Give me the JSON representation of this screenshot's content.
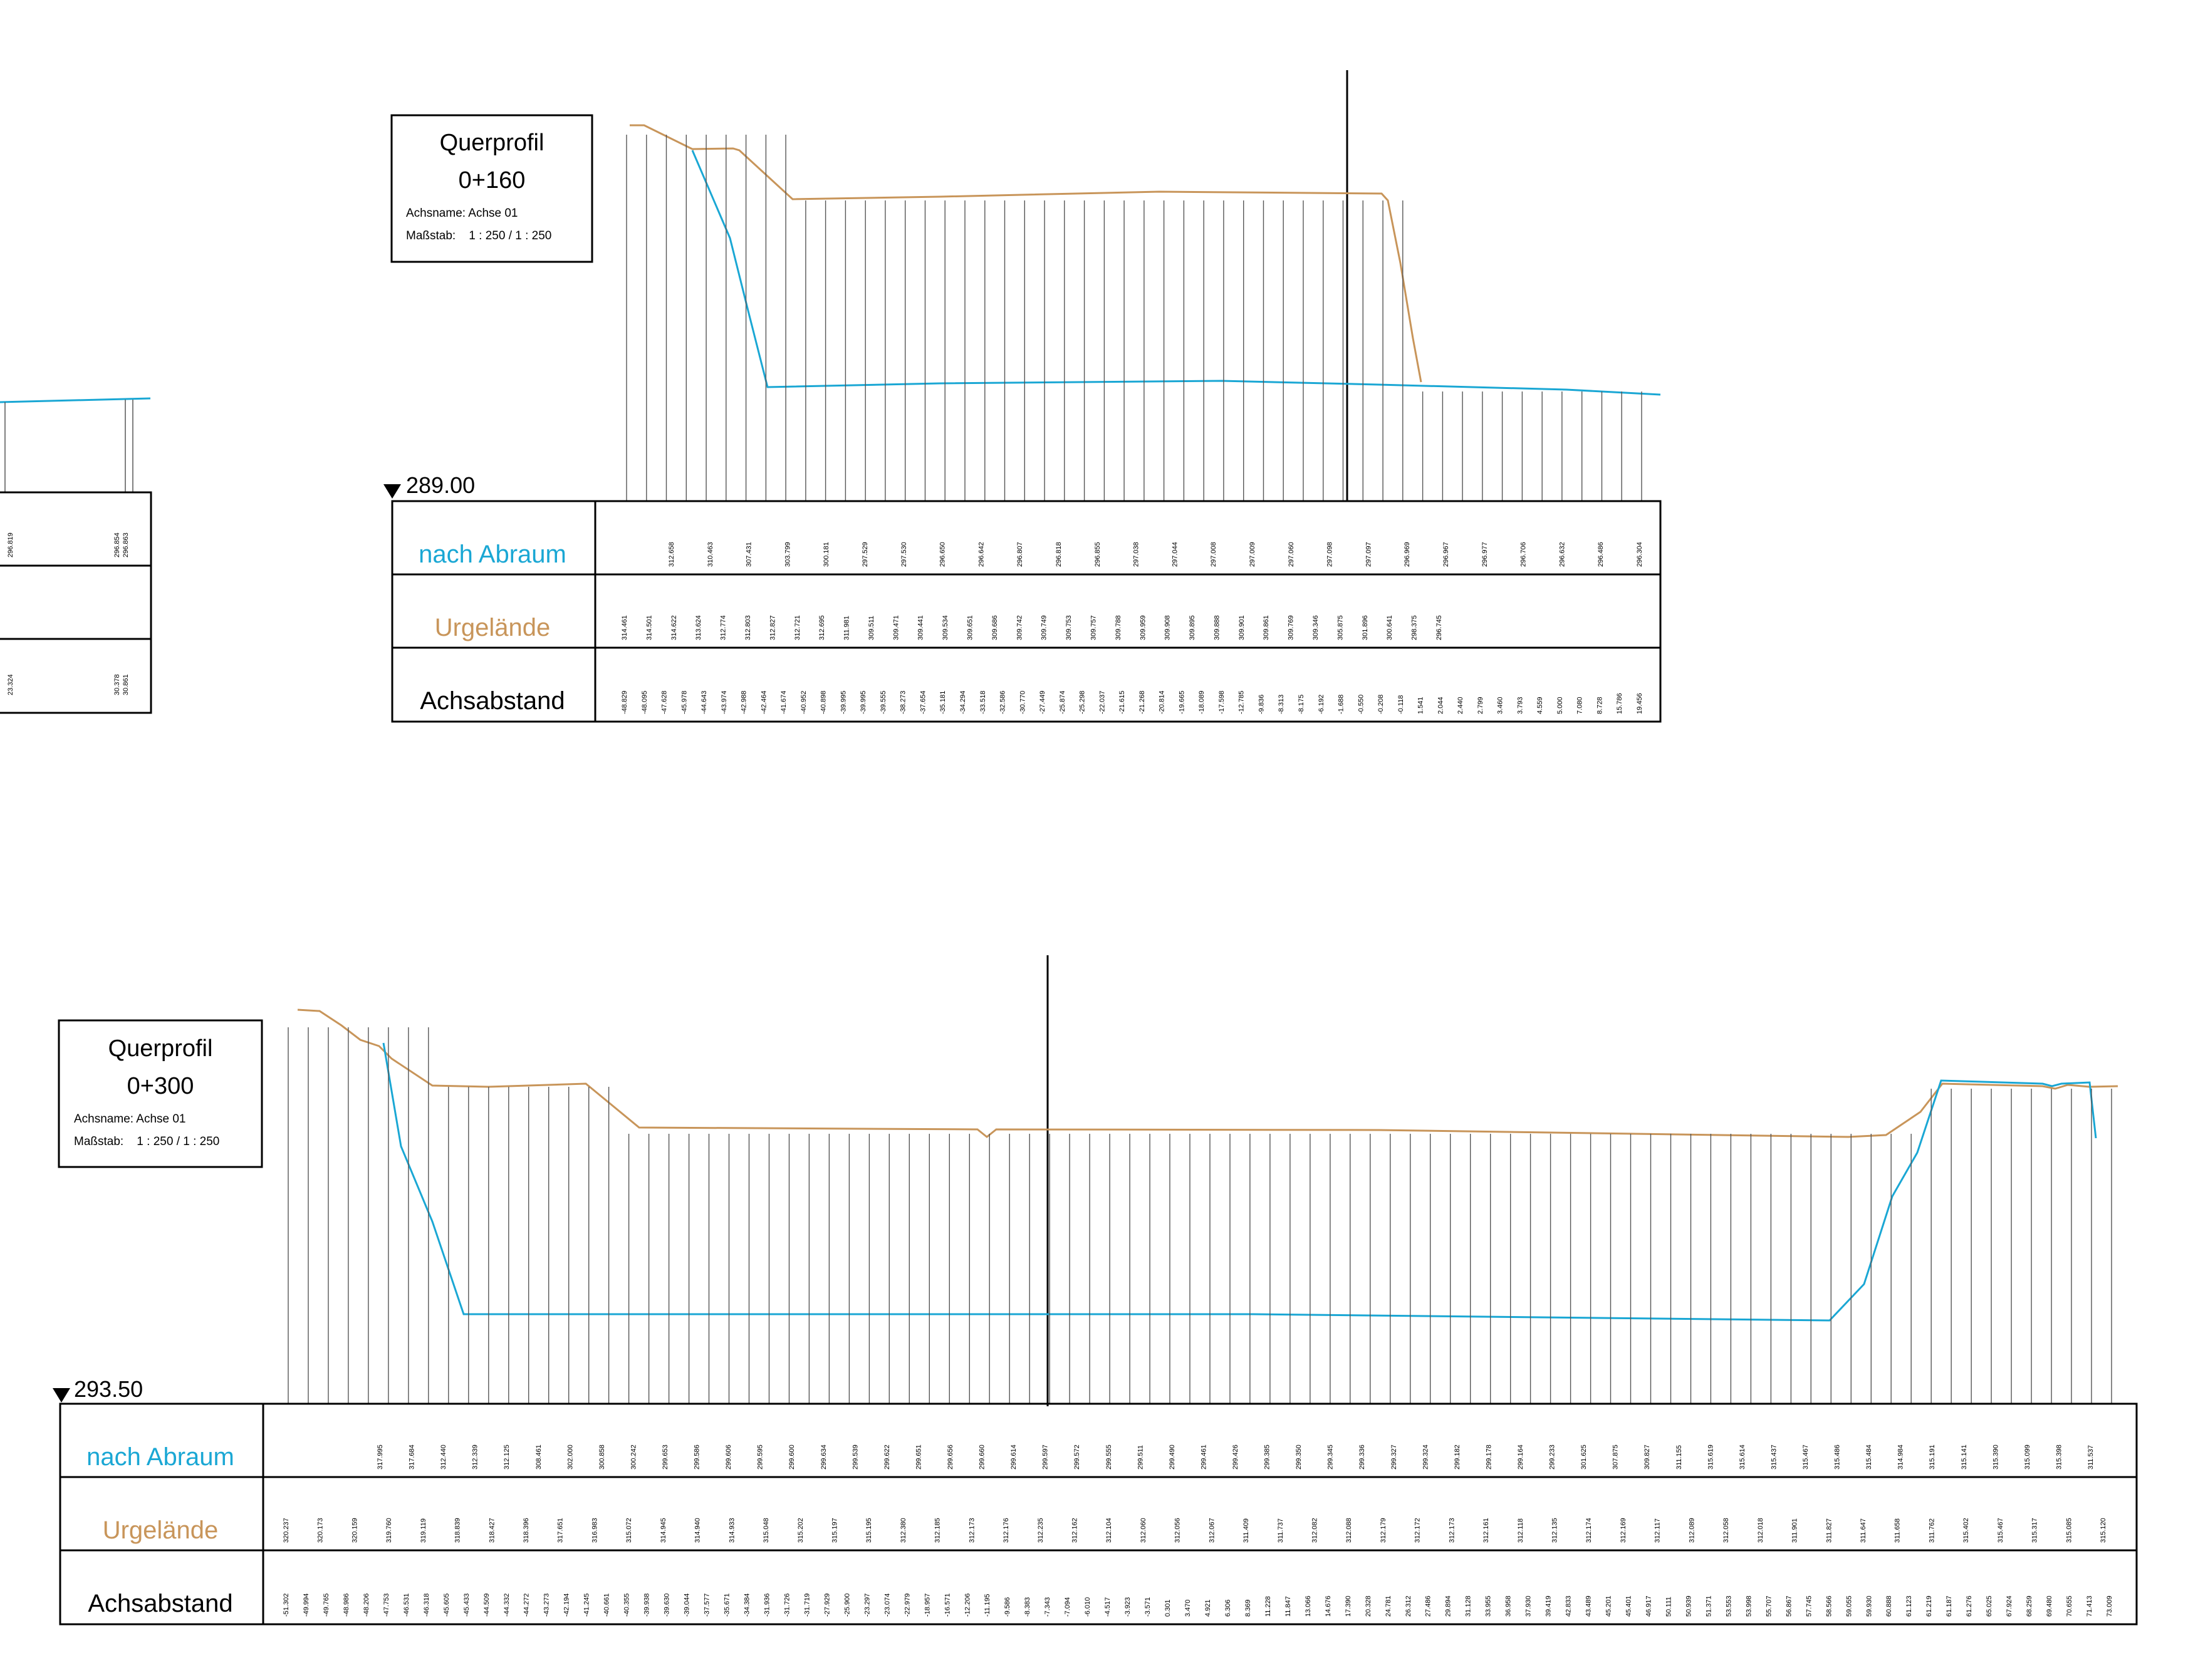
{
  "colors": {
    "nach_abraum": "#1aa7d4",
    "urgelaende": "#c8955a",
    "frame": "#000000",
    "guide": "#555555"
  },
  "profiles": [
    {
      "title": "Querprofil",
      "station": "0+160",
      "axis_name": "Achsname: Achse 01",
      "scale": "Maßstab:    1 : 250 / 1 : 250",
      "datum": "289.00",
      "rows": [
        "nach Abraum",
        "Urgelände",
        "Achsabstand"
      ],
      "nach_abraum_values": [
        "312.658",
        "310.463",
        "307.431",
        "303.799",
        "300.181",
        "297.529",
        "297.530",
        "296.650",
        "296.642",
        "296.807",
        "296.818",
        "296.855",
        "297.038",
        "297.044",
        "297.008",
        "297.009",
        "297.060",
        "297.098",
        "297.097",
        "296.969",
        "296.967",
        "296.977",
        "296.706",
        "296.632",
        "296.486",
        "296.304"
      ],
      "urgelaende_values": [
        "314.461",
        "314.501",
        "314.622",
        "313.624",
        "312.774",
        "312.803",
        "312.827",
        "312.721",
        "312.695",
        "311.981",
        "309.511",
        "309.471",
        "309.441",
        "309.534",
        "309.651",
        "309.686",
        "309.742",
        "309.749",
        "309.753",
        "309.757",
        "309.788",
        "309.959",
        "309.908",
        "309.895",
        "309.888",
        "309.901",
        "309.861",
        "309.769",
        "309.346",
        "305.875",
        "301.896",
        "300.641",
        "298.375",
        "296.745"
      ],
      "achsabstand_values": [
        "-48.829",
        "-48.095",
        "-47.628",
        "-45.978",
        "-44.643",
        "-43.974",
        "-42.988",
        "-42.464",
        "-41.674",
        "-40.952",
        "-40.898",
        "-39.995",
        "-39.995",
        "-39.555",
        "-38.273",
        "-37.654",
        "-35.181",
        "-34.294",
        "-33.518",
        "-32.586",
        "-30.770",
        "-27.449",
        "-25.874",
        "-25.298",
        "-22.037",
        "-21.615",
        "-21.268",
        "-20.814",
        "-19.665",
        "-18.089",
        "-17.598",
        "-12.785",
        "-9.836",
        "-8.313",
        "-8.175",
        "-6.192",
        "-1.688",
        "-0.550",
        "-0.208",
        "-0.118",
        "1.541",
        "2.044",
        "2.440",
        "2.799",
        "3.460",
        "3.793",
        "4.559",
        "5.000",
        "7.080",
        "8.728",
        "15.786",
        "19.456"
      ]
    },
    {
      "title": "Querprofil",
      "station": "0+300",
      "axis_name": "Achsname: Achse 01",
      "scale": "Maßstab:    1 : 250 / 1 : 250",
      "datum": "293.50",
      "rows": [
        "nach Abraum",
        "Urgelände",
        "Achsabstand"
      ],
      "nach_abraum_values": [
        "317.995",
        "317.684",
        "312.440",
        "312.339",
        "312.125",
        "308.461",
        "302.000",
        "300.858",
        "300.242",
        "299.653",
        "299.586",
        "299.606",
        "299.595",
        "299.600",
        "299.634",
        "299.539",
        "299.622",
        "299.651",
        "299.656",
        "299.660",
        "299.614",
        "299.597",
        "299.572",
        "299.555",
        "299.511",
        "299.490",
        "299.461",
        "299.426",
        "299.385",
        "299.350",
        "299.345",
        "299.336",
        "299.327",
        "299.324",
        "299.182",
        "299.178",
        "299.164",
        "299.233",
        "301.625",
        "307.875",
        "309.827",
        "311.155",
        "315.619",
        "315.614",
        "315.437",
        "315.467",
        "315.486",
        "315.484",
        "314.984",
        "315.191",
        "315.141",
        "315.390",
        "315.099",
        "315.398",
        "311.537"
      ],
      "urgelaende_values": [
        "320.237",
        "320.173",
        "320.159",
        "319.760",
        "319.119",
        "318.839",
        "318.427",
        "318.396",
        "317.651",
        "316.983",
        "315.072",
        "314.945",
        "314.940",
        "314.933",
        "315.048",
        "315.202",
        "315.197",
        "315.195",
        "312.380",
        "312.185",
        "312.173",
        "312.176",
        "312.235",
        "312.162",
        "312.104",
        "312.060",
        "312.056",
        "312.067",
        "311.409",
        "311.737",
        "312.082",
        "312.088",
        "312.179",
        "312.172",
        "312.173",
        "312.161",
        "312.118",
        "312.135",
        "312.174",
        "312.169",
        "312.117",
        "312.089",
        "312.058",
        "312.018",
        "311.901",
        "311.827",
        "311.647",
        "311.658",
        "311.762",
        "315.402",
        "315.467",
        "315.317",
        "315.085",
        "315.120"
      ],
      "achsabstand_values": [
        "-51.302",
        "-49.994",
        "-49.765",
        "-48.986",
        "-48.206",
        "-47.753",
        "-46.531",
        "-46.318",
        "-45.605",
        "-45.433",
        "-44.509",
        "-44.332",
        "-44.272",
        "-43.273",
        "-42.194",
        "-41.245",
        "-40.661",
        "-40.355",
        "-39.938",
        "-39.630",
        "-39.044",
        "-37.577",
        "-35.671",
        "-34.384",
        "-31.936",
        "-31.726",
        "-31.719",
        "-27.929",
        "-25.900",
        "-23.297",
        "-23.074",
        "-22.979",
        "-18.957",
        "-16.571",
        "-12.206",
        "-11.195",
        "-9.586",
        "-8.383",
        "-7.343",
        "-7.094",
        "-6.010",
        "-4.517",
        "-3.923",
        "-3.571",
        "0.301",
        "3.470",
        "4.921",
        "6.306",
        "8.369",
        "11.228",
        "11.847",
        "13.066",
        "14.676",
        "17.390",
        "20.328",
        "24.781",
        "26.312",
        "27.486",
        "29.894",
        "31.128",
        "33.955",
        "36.958",
        "37.930",
        "39.419",
        "42.833",
        "43.489",
        "45.201",
        "45.401",
        "46.917",
        "50.111",
        "50.939",
        "51.371",
        "53.553",
        "53.998",
        "55.707",
        "56.867",
        "57.745",
        "58.566",
        "59.055",
        "59.930",
        "60.888",
        "61.123",
        "61.219",
        "61.187",
        "61.276",
        "65.025",
        "67.924",
        "68.259",
        "69.480",
        "70.655",
        "71.413",
        "73.009"
      ]
    },
    {
      "title": "",
      "station": "",
      "partial": true,
      "nach_abraum_values": [
        "296.819",
        "296.854",
        "296.863"
      ],
      "achsabstand_values": [
        "23.324",
        "30.378",
        "30.861"
      ]
    }
  ]
}
